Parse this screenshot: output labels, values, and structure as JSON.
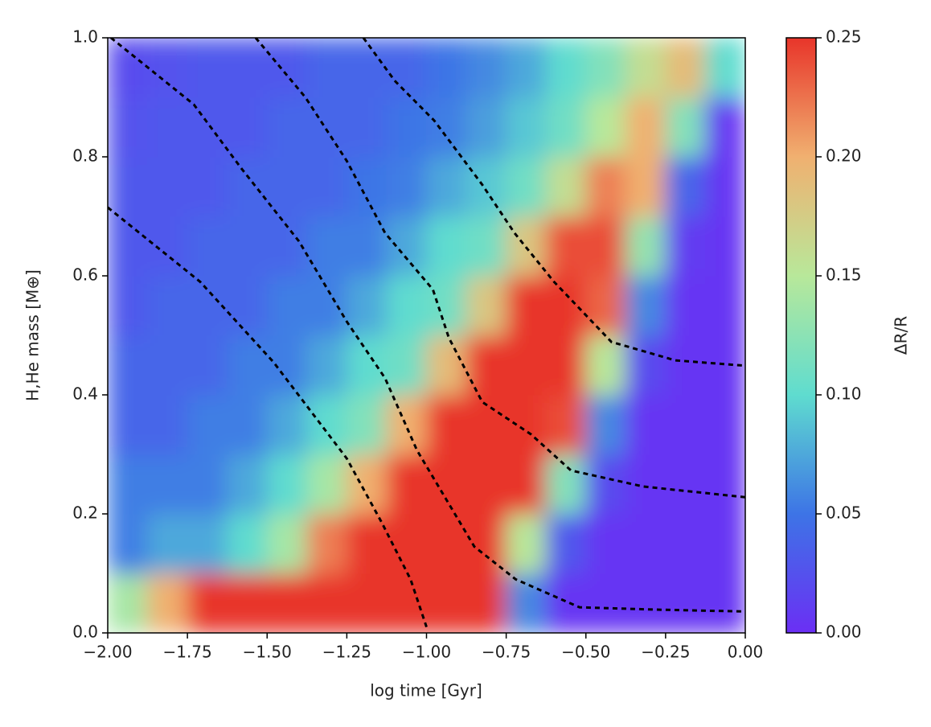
{
  "chart_data": {
    "type": "heatmap",
    "xlabel": "log time [Gyr]",
    "ylabel": "H,He mass [M⊕]",
    "colorbar_label": "ΔR/R",
    "xlim": [
      -2,
      0
    ],
    "ylim": [
      0,
      1
    ],
    "xticks": [
      {
        "value": -2,
        "label": "−2.00"
      },
      {
        "value": -1.75,
        "label": "−1.75"
      },
      {
        "value": -1.5,
        "label": "−1.50"
      },
      {
        "value": -1.25,
        "label": "−1.25"
      },
      {
        "value": -1,
        "label": "−1.00"
      },
      {
        "value": -0.75,
        "label": "−0.75"
      },
      {
        "value": -0.5,
        "label": "−0.50"
      },
      {
        "value": -0.25,
        "label": "−0.25"
      },
      {
        "value": 0,
        "label": "0.00"
      }
    ],
    "yticks": [
      {
        "value": 0,
        "label": "0.0"
      },
      0.2,
      0.4,
      0.6,
      0.8,
      {
        "value": 1,
        "label": "1.0"
      }
    ],
    "zlim": [
      0,
      0.25
    ],
    "zticks": [
      {
        "value": 0,
        "label": "0.00"
      },
      0.05,
      {
        "value": 0.1,
        "label": "0.10"
      },
      0.15,
      {
        "value": 0.2,
        "label": "0.20"
      },
      0.25
    ],
    "colormap": [
      "#6b2ff4",
      "#3d74e6",
      "#5fdccf",
      "#b8e89a",
      "#f0b070",
      "#e8352a"
    ],
    "x": [
      -1.9375,
      -1.8125,
      -1.6875,
      -1.5625,
      -1.4375,
      -1.3125,
      -1.1875,
      -1.0625,
      -0.9375,
      -0.8125,
      -0.6875,
      -0.5625,
      -0.4375,
      -0.3125,
      -0.1875,
      -0.0625
    ],
    "y": [
      0.05,
      0.15,
      0.25,
      0.35,
      0.45,
      0.55,
      0.65,
      0.75,
      0.85,
      0.95
    ],
    "z": [
      [
        0.14,
        0.2,
        0.25,
        0.25,
        0.25,
        0.25,
        0.25,
        0.25,
        0.25,
        0.25,
        0.06,
        0.005,
        0.005,
        0.005,
        0.005,
        0.005
      ],
      [
        0.055,
        0.075,
        0.075,
        0.1,
        0.14,
        0.22,
        0.25,
        0.25,
        0.25,
        0.25,
        0.15,
        0.03,
        0.005,
        0.005,
        0.005,
        0.005
      ],
      [
        0.055,
        0.055,
        0.055,
        0.075,
        0.1,
        0.14,
        0.2,
        0.25,
        0.25,
        0.25,
        0.25,
        0.12,
        0.02,
        0.005,
        0.005,
        0.005
      ],
      [
        0.04,
        0.04,
        0.055,
        0.055,
        0.075,
        0.1,
        0.12,
        0.2,
        0.25,
        0.25,
        0.25,
        0.24,
        0.06,
        0.005,
        0.005,
        0.005
      ],
      [
        0.04,
        0.04,
        0.04,
        0.055,
        0.055,
        0.075,
        0.1,
        0.11,
        0.19,
        0.25,
        0.25,
        0.25,
        0.15,
        0.02,
        0.005,
        0.005
      ],
      [
        0.03,
        0.04,
        0.04,
        0.04,
        0.055,
        0.055,
        0.075,
        0.1,
        0.11,
        0.18,
        0.25,
        0.25,
        0.23,
        0.06,
        0.005,
        0.005
      ],
      [
        0.03,
        0.03,
        0.04,
        0.04,
        0.04,
        0.055,
        0.055,
        0.075,
        0.1,
        0.11,
        0.18,
        0.24,
        0.24,
        0.13,
        0.01,
        0.005
      ],
      [
        0.03,
        0.03,
        0.03,
        0.04,
        0.04,
        0.04,
        0.05,
        0.055,
        0.075,
        0.09,
        0.11,
        0.16,
        0.22,
        0.2,
        0.04,
        0.005
      ],
      [
        0.025,
        0.03,
        0.03,
        0.03,
        0.04,
        0.04,
        0.04,
        0.05,
        0.055,
        0.07,
        0.09,
        0.11,
        0.15,
        0.2,
        0.12,
        0.005
      ],
      [
        0.02,
        0.025,
        0.03,
        0.03,
        0.03,
        0.04,
        0.04,
        0.04,
        0.05,
        0.06,
        0.075,
        0.1,
        0.12,
        0.16,
        0.19,
        0.1
      ]
    ],
    "contour_color": "#000000",
    "contours": [
      {
        "x": [
          -2,
          -1.71,
          -1.48,
          -1.25,
          -1.14,
          -1.05,
          -1.0
        ],
        "y": [
          0.715,
          0.59,
          0.455,
          0.293,
          0.185,
          0.09,
          0.01
        ]
      },
      {
        "x": [
          -1.99,
          -1.73,
          -1.58,
          -1.4,
          -1.25,
          -1.13,
          -1.03,
          -0.94,
          -0.85,
          -0.72,
          -0.52,
          -0.27,
          0
        ],
        "y": [
          1.0,
          0.888,
          0.78,
          0.658,
          0.523,
          0.428,
          0.307,
          0.226,
          0.145,
          0.09,
          0.043,
          0.039,
          0.036
        ]
      },
      {
        "x": [
          -1.536,
          -1.38,
          -1.25,
          -1.13,
          -0.98,
          -0.93,
          -0.825,
          -0.673,
          -0.547,
          -0.32,
          0
        ],
        "y": [
          1.0,
          0.9,
          0.793,
          0.672,
          0.577,
          0.496,
          0.388,
          0.334,
          0.273,
          0.246,
          0.228
        ]
      },
      {
        "x": [
          -1.198,
          -1.1,
          -0.976,
          -0.825,
          -0.724,
          -0.6,
          -0.42,
          -0.22,
          0
        ],
        "y": [
          1.0,
          0.928,
          0.861,
          0.753,
          0.672,
          0.59,
          0.489,
          0.458,
          0.449
        ]
      }
    ]
  }
}
